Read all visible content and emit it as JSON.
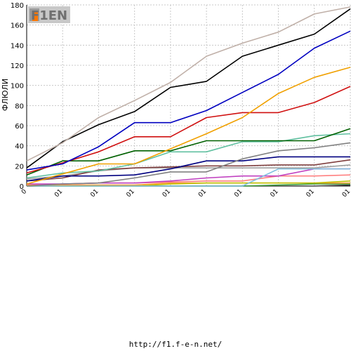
{
  "chart_data": {
    "type": "line",
    "ylabel": "ФЛЮЛИ",
    "ylim": [
      0,
      180
    ],
    "yticks": [
      0,
      20,
      40,
      60,
      80,
      100,
      120,
      140,
      160,
      180
    ],
    "xticks": [
      "0",
      "01",
      "01",
      "01",
      "01",
      "01",
      "01",
      "01",
      "01",
      "01"
    ],
    "grid": true,
    "series": [
      {
        "color": "#c0b0a8",
        "values": [
          25,
          43,
          68,
          85,
          103,
          129,
          142,
          153,
          171,
          178
        ]
      },
      {
        "color": "#000000",
        "values": [
          18,
          44,
          61,
          74,
          98,
          104,
          129,
          140,
          151,
          176
        ]
      },
      {
        "color": "#0000c0",
        "values": [
          16,
          22,
          39,
          63,
          63,
          75,
          93,
          111,
          137,
          154
        ]
      },
      {
        "color": "#f0a000",
        "values": [
          2,
          12,
          22,
          22,
          37,
          52,
          68,
          92,
          108,
          118
        ]
      },
      {
        "color": "#d01010",
        "values": [
          13,
          23,
          34,
          49,
          49,
          68,
          73,
          73,
          83,
          99
        ]
      },
      {
        "color": "#006000",
        "values": [
          11,
          25,
          25,
          35,
          35,
          45,
          45,
          45,
          45,
          57
        ]
      },
      {
        "color": "#60c0a0",
        "values": [
          8,
          13,
          15,
          22,
          34,
          34,
          44,
          44,
          50,
          52
        ]
      },
      {
        "color": "#808080",
        "values": [
          0,
          2,
          3,
          8,
          14,
          14,
          27,
          35,
          38,
          43
        ]
      },
      {
        "color": "#000080",
        "values": [
          5,
          10,
          10,
          11,
          17,
          25,
          25,
          29,
          29,
          29
        ]
      },
      {
        "color": "#804040",
        "values": [
          5,
          8,
          16,
          18,
          19,
          20,
          20,
          21,
          21,
          26
        ]
      },
      {
        "color": "#a0a0a0",
        "values": [
          7,
          10,
          15,
          18,
          18,
          18,
          18,
          18,
          18,
          21
        ]
      },
      {
        "color": "#80c0e0",
        "values": [
          0,
          0,
          0,
          0,
          0,
          0,
          0,
          17,
          17,
          17
        ]
      },
      {
        "color": "#c040c0",
        "values": [
          2,
          2,
          3,
          3,
          5,
          8,
          10,
          10,
          17,
          17
        ]
      },
      {
        "color": "#ff8080",
        "values": [
          0,
          2,
          3,
          3,
          4,
          5,
          5,
          10,
          10,
          11
        ]
      },
      {
        "color": "#c0c000",
        "values": [
          0,
          0,
          0,
          0,
          2,
          3,
          3,
          3,
          3,
          5
        ]
      },
      {
        "color": "#ffa040",
        "values": [
          1,
          1,
          1,
          1,
          3,
          3,
          3,
          3,
          3,
          3
        ]
      },
      {
        "color": "#40a040",
        "values": [
          0,
          0,
          0,
          0,
          0,
          0,
          0,
          1,
          2,
          2
        ]
      },
      {
        "color": "#404040",
        "values": [
          0,
          0,
          0,
          0,
          0,
          0,
          0,
          0,
          0,
          1
        ]
      }
    ]
  },
  "logo": {
    "text": "F1EN"
  },
  "footer": {
    "url": "http://f1.f-e-n.net/"
  }
}
